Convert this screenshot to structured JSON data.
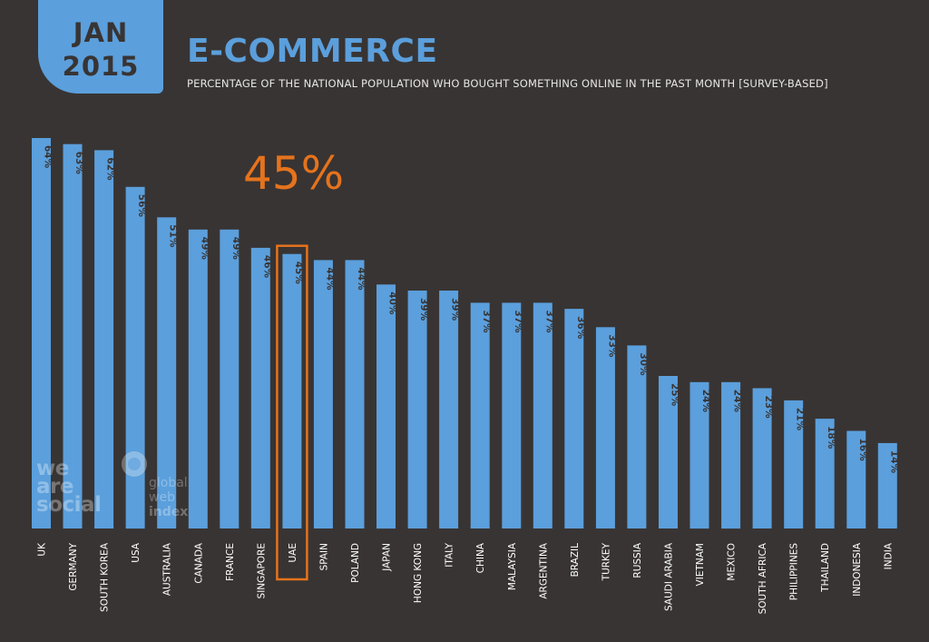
{
  "header": {
    "month": "JAN",
    "year": "2015",
    "title": "E-COMMERCE",
    "subtitle": "PERCENTAGE OF THE NATIONAL POPULATION WHO BOUGHT SOMETHING ONLINE IN THE PAST MONTH [SURVEY-BASED]"
  },
  "highlight": {
    "category": "UAE",
    "value_label": "45%",
    "color": "#e5731d"
  },
  "branding": {
    "we_are_social": [
      "we",
      "are",
      "social"
    ],
    "global_web_index": [
      "global",
      "web",
      "index"
    ]
  },
  "colors": {
    "background": "#383433",
    "bar": "#5b9fdc",
    "label_on_bar": "#383433",
    "axis_label": "#ffffff",
    "highlight": "#e5731d"
  },
  "chart_data": {
    "type": "bar",
    "title": "E-COMMERCE",
    "subtitle": "PERCENTAGE OF THE NATIONAL POPULATION WHO BOUGHT SOMETHING ONLINE IN THE PAST MONTH [SURVEY-BASED]",
    "xlabel": "",
    "ylabel": "",
    "ylim": [
      0,
      64
    ],
    "grid": false,
    "categories": [
      "UK",
      "GERMANY",
      "SOUTH KOREA",
      "USA",
      "AUSTRALIA",
      "CANADA",
      "FRANCE",
      "SINGAPORE",
      "UAE",
      "SPAIN",
      "POLAND",
      "JAPAN",
      "HONG KONG",
      "ITALY",
      "CHINA",
      "MALAYSIA",
      "ARGENTINA",
      "BRAZIL",
      "TURKEY",
      "RUSSIA",
      "SAUDI ARABIA",
      "VIETNAM",
      "MEXICO",
      "SOUTH AFRICA",
      "PHILIPPINES",
      "THAILAND",
      "INDONESIA",
      "INDIA"
    ],
    "values": [
      64,
      63,
      62,
      56,
      51,
      49,
      49,
      46,
      45,
      44,
      44,
      40,
      39,
      39,
      37,
      37,
      37,
      36,
      33,
      30,
      25,
      24,
      24,
      23,
      21,
      18,
      16,
      14
    ],
    "data_labels": [
      "64%",
      "63%",
      "62%",
      "56%",
      "51%",
      "49%",
      "49%",
      "46%",
      "45%",
      "44%",
      "44%",
      "40%",
      "39%",
      "39%",
      "37%",
      "37%",
      "37%",
      "36%",
      "33%",
      "30%",
      "25%",
      "24%",
      "24%",
      "23%",
      "21%",
      "18%",
      "16%",
      "14%"
    ]
  }
}
